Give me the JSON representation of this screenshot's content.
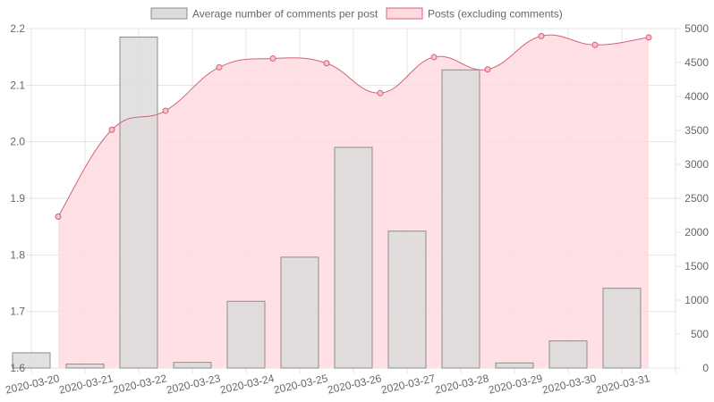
{
  "chart_data": {
    "type": "bar",
    "categories": [
      "2020-03-20",
      "2020-03-21",
      "2020-03-22",
      "2020-03-23",
      "2020-03-24",
      "2020-03-25",
      "2020-03-26",
      "2020-03-27",
      "2020-03-28",
      "2020-03-29",
      "2020-03-30",
      "2020-03-31"
    ],
    "series": [
      {
        "name": "Average number of comments per post",
        "type": "bar",
        "axis": "left",
        "values": [
          1.627,
          1.607,
          2.185,
          1.61,
          1.718,
          1.796,
          1.99,
          1.842,
          2.127,
          1.609,
          1.648,
          1.741
        ],
        "fill": "#dcdcdc",
        "stroke": "#8c8c8c"
      },
      {
        "name": "Posts (excluding comments)",
        "type": "area",
        "axis": "right",
        "values": [
          2230,
          3510,
          3790,
          4430,
          4560,
          4490,
          4050,
          4580,
          4400,
          4890,
          4760,
          4870
        ],
        "fill": "#ffdbe1",
        "stroke": "#d4627a"
      }
    ],
    "yleft": {
      "min": 1.6,
      "max": 2.2,
      "ticks": [
        "1.6",
        "1.7",
        "1.8",
        "1.9",
        "2.0",
        "2.1",
        "2.2"
      ]
    },
    "yright": {
      "min": 0,
      "max": 5000,
      "ticks": [
        "0",
        "500",
        "1000",
        "1500",
        "2000",
        "2500",
        "3000",
        "3500",
        "4000",
        "4500",
        "5000"
      ]
    },
    "legend": "top",
    "grid": true
  }
}
